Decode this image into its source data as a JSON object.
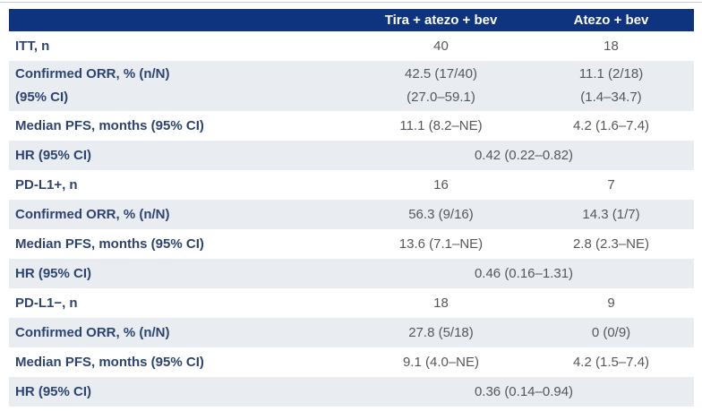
{
  "colors": {
    "header_bg": "#0e3480",
    "header_text": "#ffffff",
    "label_text": "#2d4470",
    "value_text": "#55575b",
    "row_alt_bg": "#e9edf2",
    "top_border": "#cdd1d6"
  },
  "chart_data": {
    "type": "table",
    "columns": [
      "",
      "Tira + atezo + bev",
      "Atezo + bev"
    ],
    "rows": [
      {
        "label": "ITT, n",
        "values": [
          "40",
          "18"
        ]
      },
      {
        "label": "Confirmed ORR, % (n/N)",
        "label2": "(95% CI)",
        "values": [
          "42.5 (17/40)",
          "11.1 (2/18)"
        ],
        "values2": [
          "(27.0–59.1)",
          "(1.4–34.7)"
        ]
      },
      {
        "label": "Median PFS, months (95% CI)",
        "values": [
          "11.1 (8.2–NE)",
          "4.2 (1.6–7.4)"
        ]
      },
      {
        "label": "HR (95% CI)",
        "span_value": "0.42 (0.22–0.82)"
      },
      {
        "label": "PD-L1+, n",
        "values": [
          "16",
          "7"
        ]
      },
      {
        "label": "Confirmed ORR, % (n/N)",
        "values": [
          "56.3 (9/16)",
          "14.3 (1/7)"
        ]
      },
      {
        "label": "Median PFS, months (95% CI)",
        "values": [
          "13.6 (7.1–NE)",
          "2.8 (2.3–NE)"
        ]
      },
      {
        "label": "HR (95% CI)",
        "span_value": "0.46 (0.16–1.31)"
      },
      {
        "label": "PD-L1−, n",
        "values": [
          "18",
          "9"
        ]
      },
      {
        "label": "Confirmed ORR, % (n/N)",
        "values": [
          "27.8 (5/18)",
          "0 (0/9)"
        ]
      },
      {
        "label": "Median PFS, months (95% CI)",
        "values": [
          "9.1 (4.0–NE)",
          "4.2 (1.5–7.4)"
        ]
      },
      {
        "label": "HR (95% CI)",
        "span_value": "0.36 (0.14–0.94)"
      }
    ]
  }
}
